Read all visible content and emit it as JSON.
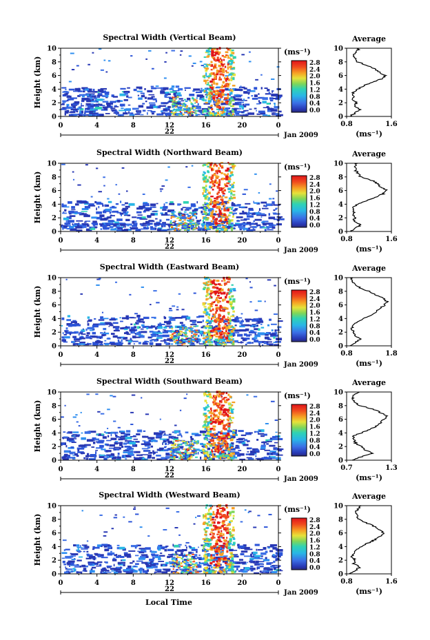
{
  "footer": {
    "xaxis_label": "Local Time"
  },
  "panels": [
    {
      "title": "Spectral Width (Vertical Beam)",
      "avg_title": "Average",
      "unit": "(ms⁻¹)",
      "date_day": "22",
      "date_label": "Jan 2009",
      "avg_xticks": [
        "0.8",
        "1.6"
      ],
      "avg_xlim": [
        0.8,
        1.6
      ]
    },
    {
      "title": "Spectral Width (Northward Beam)",
      "avg_title": "Average",
      "unit": "(ms⁻¹)",
      "date_day": "22",
      "date_label": "Jan 2009",
      "avg_xticks": [
        "0.8",
        "1.6"
      ],
      "avg_xlim": [
        0.8,
        1.6
      ]
    },
    {
      "title": "Spectral Width (Eastward Beam)",
      "avg_title": "Average",
      "unit": "(ms⁻¹)",
      "date_day": "22",
      "date_label": "Jan 2009",
      "avg_xticks": [
        "0.8",
        "1.8"
      ],
      "avg_xlim": [
        0.8,
        1.8
      ]
    },
    {
      "title": "Spectral Width (Southward Beam)",
      "avg_title": "Average",
      "unit": "(ms⁻¹)",
      "date_day": "22",
      "date_label": "Jan 2009",
      "avg_xticks": [
        "0.7",
        "1.3"
      ],
      "avg_xlim": [
        0.7,
        1.3
      ]
    },
    {
      "title": "Spectral Width (Westward Beam)",
      "avg_title": "Average",
      "unit": "(ms⁻¹)",
      "date_day": "22",
      "date_label": "Jan 2009",
      "avg_xticks": [
        "0.8",
        "1.6"
      ],
      "avg_xlim": [
        0.8,
        1.6
      ]
    }
  ],
  "chart_data": {
    "type": "heatmap",
    "x_ticks": [
      "0",
      "4",
      "8",
      "12",
      "16",
      "20",
      "0"
    ],
    "x_values": [
      0,
      4,
      8,
      12,
      16,
      20,
      24
    ],
    "xlim": [
      0,
      24
    ],
    "y_ticks": [
      "0",
      "2",
      "4",
      "6",
      "8",
      "10"
    ],
    "y_values": [
      0,
      2,
      4,
      6,
      8,
      10
    ],
    "ylim": [
      0,
      10
    ],
    "ylabel": "Height (km)",
    "colorbar_ticks": [
      "2.8",
      "2.4",
      "2.0",
      "1.6",
      "1.2",
      "0.8",
      "0.4",
      "0.0"
    ],
    "colorbar_range": [
      0.0,
      2.8
    ],
    "avg_ylim": [
      0,
      10
    ],
    "avg_yticks": [
      "0",
      "2",
      "4",
      "6",
      "8",
      "10"
    ],
    "avg_xlabel": "(ms⁻¹)",
    "avg_heights": [
      0.0,
      0.5,
      1.0,
      1.5,
      2.0,
      2.5,
      3.0,
      3.5,
      4.0,
      4.5,
      5.0,
      5.5,
      6.0,
      6.5,
      7.0,
      7.5,
      8.0,
      8.5,
      9.0,
      9.5,
      10.0
    ],
    "avg_profiles": [
      [
        0.86,
        0.95,
        1.05,
        0.92,
        0.98,
        0.88,
        0.93,
        0.9,
        1.0,
        1.1,
        1.25,
        1.42,
        1.5,
        1.38,
        1.3,
        1.15,
        1.0,
        0.95,
        0.9,
        0.98,
        1.02
      ],
      [
        0.88,
        0.97,
        1.05,
        0.92,
        0.95,
        0.9,
        0.94,
        0.92,
        0.98,
        1.15,
        1.3,
        1.45,
        1.52,
        1.4,
        1.35,
        1.25,
        1.05,
        1.0,
        0.96,
        0.95,
        0.98
      ],
      [
        0.9,
        1.0,
        1.1,
        0.98,
        0.96,
        0.92,
        0.95,
        1.05,
        1.15,
        1.35,
        1.45,
        1.55,
        1.65,
        1.7,
        1.6,
        1.45,
        1.3,
        1.1,
        1.0,
        0.92,
        0.9
      ],
      [
        0.76,
        0.9,
        1.05,
        0.95,
        0.9,
        0.82,
        0.8,
        0.78,
        0.9,
        1.0,
        1.1,
        1.16,
        1.2,
        1.24,
        1.15,
        1.05,
        0.88,
        0.8,
        0.78,
        0.8,
        0.86
      ],
      [
        0.84,
        0.95,
        1.04,
        0.92,
        0.96,
        0.9,
        0.94,
        0.96,
        1.06,
        1.18,
        1.3,
        1.4,
        1.46,
        1.38,
        1.28,
        1.15,
        1.02,
        0.98,
        0.96,
        1.0,
        1.04
      ]
    ]
  }
}
